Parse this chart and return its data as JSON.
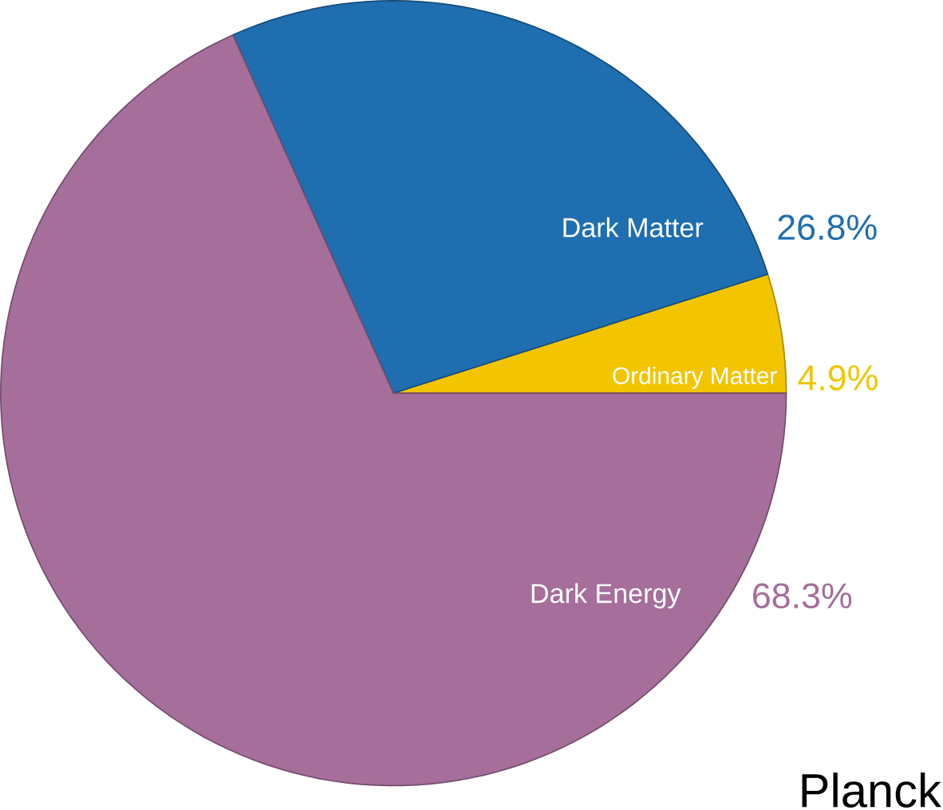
{
  "chart_data": {
    "type": "pie",
    "categories": [
      "Ordinary Matter",
      "Dark Matter",
      "Dark Energy"
    ],
    "values": [
      4.9,
      26.8,
      68.3
    ],
    "colors": [
      "#f2c500",
      "#1f6eb0",
      "#a66e9b"
    ],
    "value_labels": [
      "4.9%",
      "26.8%",
      "68.3%"
    ],
    "annotations": [
      "Planck"
    ]
  }
}
